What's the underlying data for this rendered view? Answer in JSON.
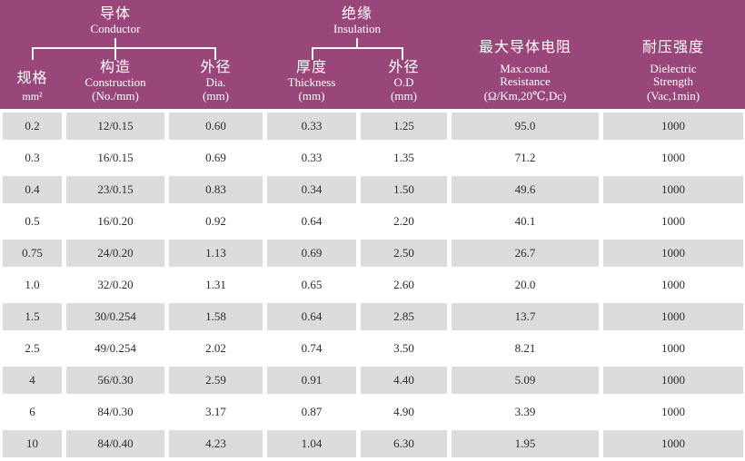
{
  "colors": {
    "header_bg": "#99477a",
    "header_text": "#ffffff",
    "row_alt": "#dcdcdc",
    "row_bg": "#ffffff",
    "body_text": "#2b2b2b"
  },
  "table": {
    "groups": [
      {
        "zh": "导体",
        "en": "Conductor"
      },
      {
        "zh": "绝缘",
        "en": "Insulation"
      }
    ],
    "columns": [
      {
        "zh": "规格",
        "en": [
          "mm²"
        ]
      },
      {
        "zh": "构造",
        "en": [
          "Construction",
          "(No./mm)"
        ]
      },
      {
        "zh": "外径",
        "en": [
          "Dia.",
          "(mm)"
        ]
      },
      {
        "zh": "厚度",
        "en": [
          "Thickness",
          "(mm)"
        ]
      },
      {
        "zh": "外径",
        "en": [
          "O.D",
          "(mm)"
        ]
      },
      {
        "zh": "最大导体电阻",
        "en": [
          "Max.cond.",
          "Resistance",
          "(Ω/Km,20℃,Dc)"
        ]
      },
      {
        "zh": "耐压强度",
        "en": [
          "Dielectric",
          "Strength",
          "(Vac,1min)"
        ]
      }
    ],
    "rows": [
      [
        "0.2",
        "12/0.15",
        "0.60",
        "0.33",
        "1.25",
        "95.0",
        "1000"
      ],
      [
        "0.3",
        "16/0.15",
        "0.69",
        "0.33",
        "1.35",
        "71.2",
        "1000"
      ],
      [
        "0.4",
        "23/0.15",
        "0.83",
        "0.34",
        "1.50",
        "49.6",
        "1000"
      ],
      [
        "0.5",
        "16/0.20",
        "0.92",
        "0.64",
        "2.20",
        "40.1",
        "1000"
      ],
      [
        "0.75",
        "24/0.20",
        "1.13",
        "0.69",
        "2.50",
        "26.7",
        "1000"
      ],
      [
        "1.0",
        "32/0.20",
        "1.31",
        "0.65",
        "2.60",
        "20.0",
        "1000"
      ],
      [
        "1.5",
        "30/0.254",
        "1.58",
        "0.64",
        "2.85",
        "13.7",
        "1000"
      ],
      [
        "2.5",
        "49/0.254",
        "2.02",
        "0.74",
        "3.50",
        "8.21",
        "1000"
      ],
      [
        "4",
        "56/0.30",
        "2.59",
        "0.91",
        "4.40",
        "5.09",
        "1000"
      ],
      [
        "6",
        "84/0.30",
        "3.17",
        "0.87",
        "4.90",
        "3.39",
        "1000"
      ],
      [
        "10",
        "84/0.40",
        "4.23",
        "1.04",
        "6.30",
        "1.95",
        "1000"
      ]
    ]
  },
  "chart_data": {
    "type": "table",
    "title": "Conductor / Insulation wire specification table",
    "column_groups": [
      {
        "label": "导体 Conductor",
        "columns": [
          0,
          1,
          2
        ]
      },
      {
        "label": "绝缘 Insulation",
        "columns": [
          3,
          4
        ]
      }
    ],
    "columns": [
      "规格 mm²",
      "构造 Construction (No./mm)",
      "外径 Dia. (mm)",
      "厚度 Thickness (mm)",
      "外径 O.D (mm)",
      "最大导体电阻 Max.cond. Resistance (Ω/Km,20℃,Dc)",
      "耐压强度 Dielectric Strength (Vac,1min)"
    ],
    "rows": [
      [
        "0.2",
        "12/0.15",
        "0.60",
        "0.33",
        "1.25",
        "95.0",
        "1000"
      ],
      [
        "0.3",
        "16/0.15",
        "0.69",
        "0.33",
        "1.35",
        "71.2",
        "1000"
      ],
      [
        "0.4",
        "23/0.15",
        "0.83",
        "0.34",
        "1.50",
        "49.6",
        "1000"
      ],
      [
        "0.5",
        "16/0.20",
        "0.92",
        "0.64",
        "2.20",
        "40.1",
        "1000"
      ],
      [
        "0.75",
        "24/0.20",
        "1.13",
        "0.69",
        "2.50",
        "26.7",
        "1000"
      ],
      [
        "1.0",
        "32/0.20",
        "1.31",
        "0.65",
        "2.60",
        "20.0",
        "1000"
      ],
      [
        "1.5",
        "30/0.254",
        "1.58",
        "0.64",
        "2.85",
        "13.7",
        "1000"
      ],
      [
        "2.5",
        "49/0.254",
        "2.02",
        "0.74",
        "3.50",
        "8.21",
        "1000"
      ],
      [
        "4",
        "56/0.30",
        "2.59",
        "0.91",
        "4.40",
        "5.09",
        "1000"
      ],
      [
        "6",
        "84/0.30",
        "3.17",
        "0.87",
        "4.90",
        "3.39",
        "1000"
      ],
      [
        "10",
        "84/0.40",
        "4.23",
        "1.04",
        "6.30",
        "1.95",
        "1000"
      ]
    ]
  }
}
